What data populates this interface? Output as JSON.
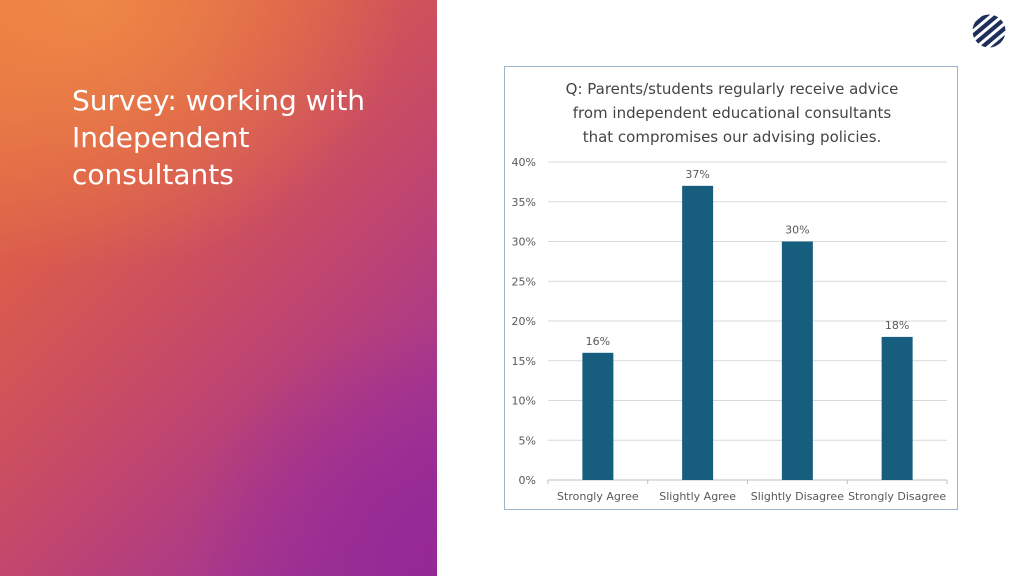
{
  "slide": {
    "title_lines": [
      "Survey: working with",
      "Independent",
      "consultants"
    ]
  },
  "logo": {
    "icon": "striped-circle-logo-icon",
    "color": "#1f2f5c"
  },
  "colors": {
    "bar": "#175e7e",
    "grid": "#d9d9d9",
    "text": "#595959"
  },
  "chart_data": {
    "type": "bar",
    "title_lines": [
      "Q: Parents/students regularly receive advice",
      "from independent educational consultants",
      "that compromises our advising policies."
    ],
    "categories": [
      "Strongly Agree",
      "Slightly Agree",
      "Slightly Disagree",
      "Strongly Disagree"
    ],
    "values": [
      16,
      37,
      30,
      18
    ],
    "data_labels": [
      "16%",
      "37%",
      "30%",
      "18%"
    ],
    "yticks": [
      0,
      5,
      10,
      15,
      20,
      25,
      30,
      35,
      40
    ],
    "ytick_labels": [
      "0%",
      "5%",
      "10%",
      "15%",
      "20%",
      "25%",
      "30%",
      "35%",
      "40%"
    ],
    "ylim": [
      0,
      40
    ],
    "xlabel": "",
    "ylabel": "",
    "grid": true,
    "legend": "none"
  }
}
